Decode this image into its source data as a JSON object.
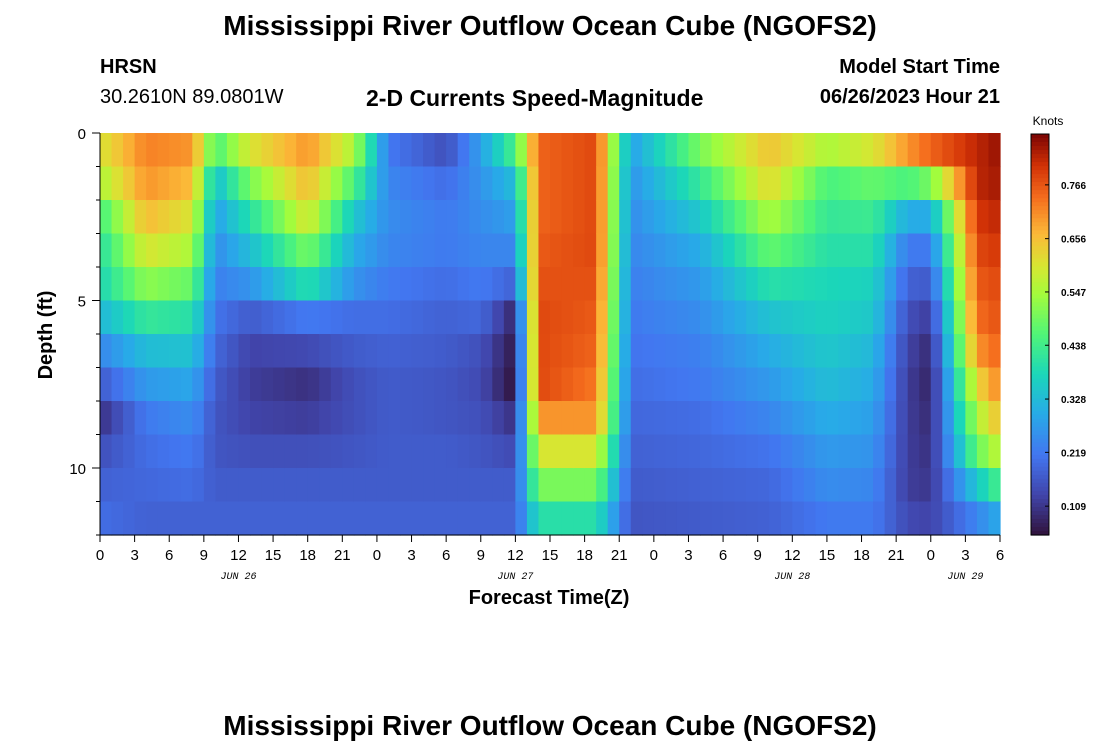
{
  "header": {
    "title": "Mississippi River Outflow Ocean Cube (NGOFS2)",
    "station": "HRSN",
    "coords": "30.2610N  89.0801W",
    "subtitle": "2-D Currents Speed-Magnitude",
    "model_start_label": "Model Start Time",
    "model_start_value": "06/26/2023 Hour 21"
  },
  "footer": {
    "title": "Mississippi River Outflow Ocean Cube (NGOFS2)"
  },
  "colors": {
    "palette": "turbo"
  },
  "chart_data": {
    "type": "heatmap",
    "title": "2-D Currents Speed-Magnitude",
    "xlabel": "Forecast Time(Z)",
    "ylabel": "Depth (ft)",
    "x_start_hour": 0,
    "x_end_hour": 78,
    "x_step_hours": 1,
    "x_tick_labels": [
      "0",
      "3",
      "6",
      "9",
      "12",
      "15",
      "18",
      "21",
      "0",
      "3",
      "6",
      "9",
      "12",
      "15",
      "18",
      "21",
      "0",
      "3",
      "6",
      "9",
      "12",
      "15",
      "18",
      "21",
      "0",
      "3",
      "6"
    ],
    "date_labels": [
      {
        "hour": 12,
        "label": "JUN 26"
      },
      {
        "hour": 36,
        "label": "JUN 27"
      },
      {
        "hour": 60,
        "label": "JUN 28"
      },
      {
        "hour": 75,
        "label": "JUN 29"
      }
    ],
    "ylim": [
      0,
      12
    ],
    "y_ticks": [
      0,
      5,
      10
    ],
    "depth_levels": 12,
    "colorbar": {
      "label": "Knots",
      "min": 0.05,
      "max": 0.87,
      "ticks": [
        0.109,
        0.219,
        0.328,
        0.438,
        0.547,
        0.656,
        0.766
      ],
      "tick_labels": [
        "0.109",
        "0.219",
        "0.328",
        "0.438",
        "0.547",
        "0.656",
        "0.766"
      ]
    },
    "key_times_hours": [
      0,
      4,
      8,
      10,
      13,
      18,
      22,
      25,
      30,
      33,
      36,
      38,
      43,
      46,
      52,
      58,
      63,
      67,
      70,
      72,
      76,
      78
    ],
    "profiles": [
      [
        0.6,
        0.55,
        0.44,
        0.4,
        0.38,
        0.32,
        0.24,
        0.17,
        0.1,
        0.15,
        0.18,
        0.2
      ],
      [
        0.72,
        0.7,
        0.66,
        0.6,
        0.52,
        0.42,
        0.33,
        0.27,
        0.22,
        0.2,
        0.19,
        0.18
      ],
      [
        0.7,
        0.66,
        0.6,
        0.55,
        0.48,
        0.4,
        0.34,
        0.29,
        0.25,
        0.22,
        0.2,
        0.18
      ],
      [
        0.45,
        0.33,
        0.28,
        0.25,
        0.23,
        0.21,
        0.19,
        0.17,
        0.16,
        0.16,
        0.17,
        0.18
      ],
      [
        0.6,
        0.5,
        0.4,
        0.33,
        0.26,
        0.17,
        0.13,
        0.12,
        0.13,
        0.15,
        0.17,
        0.18
      ],
      [
        0.7,
        0.66,
        0.6,
        0.5,
        0.4,
        0.22,
        0.14,
        0.1,
        0.12,
        0.15,
        0.17,
        0.18
      ],
      [
        0.55,
        0.45,
        0.35,
        0.3,
        0.26,
        0.2,
        0.17,
        0.15,
        0.15,
        0.16,
        0.17,
        0.18
      ],
      [
        0.22,
        0.24,
        0.25,
        0.24,
        0.22,
        0.2,
        0.18,
        0.17,
        0.17,
        0.17,
        0.17,
        0.18
      ],
      [
        0.15,
        0.2,
        0.22,
        0.22,
        0.2,
        0.18,
        0.17,
        0.16,
        0.16,
        0.17,
        0.17,
        0.18
      ],
      [
        0.28,
        0.26,
        0.25,
        0.24,
        0.22,
        0.19,
        0.15,
        0.14,
        0.15,
        0.16,
        0.17,
        0.18
      ],
      [
        0.45,
        0.33,
        0.28,
        0.24,
        0.18,
        0.08,
        0.06,
        0.05,
        0.1,
        0.14,
        0.17,
        0.18
      ],
      [
        0.75,
        0.75,
        0.75,
        0.76,
        0.77,
        0.78,
        0.78,
        0.78,
        0.7,
        0.6,
        0.5,
        0.4
      ],
      [
        0.78,
        0.78,
        0.78,
        0.78,
        0.77,
        0.76,
        0.75,
        0.73,
        0.7,
        0.6,
        0.5,
        0.4
      ],
      [
        0.28,
        0.26,
        0.25,
        0.24,
        0.23,
        0.22,
        0.21,
        0.2,
        0.19,
        0.18,
        0.17,
        0.16
      ],
      [
        0.5,
        0.42,
        0.35,
        0.3,
        0.27,
        0.25,
        0.23,
        0.22,
        0.2,
        0.19,
        0.18,
        0.17
      ],
      [
        0.65,
        0.62,
        0.55,
        0.48,
        0.4,
        0.34,
        0.3,
        0.27,
        0.24,
        0.21,
        0.19,
        0.18
      ],
      [
        0.55,
        0.45,
        0.42,
        0.4,
        0.38,
        0.37,
        0.35,
        0.33,
        0.3,
        0.27,
        0.25,
        0.22
      ],
      [
        0.6,
        0.48,
        0.43,
        0.4,
        0.37,
        0.35,
        0.32,
        0.3,
        0.28,
        0.26,
        0.24,
        0.22
      ],
      [
        0.7,
        0.45,
        0.3,
        0.22,
        0.18,
        0.15,
        0.13,
        0.12,
        0.12,
        0.12,
        0.12,
        0.14
      ],
      [
        0.75,
        0.5,
        0.3,
        0.22,
        0.17,
        0.12,
        0.09,
        0.08,
        0.09,
        0.1,
        0.11,
        0.13
      ],
      [
        0.82,
        0.82,
        0.8,
        0.78,
        0.76,
        0.74,
        0.7,
        0.62,
        0.55,
        0.48,
        0.35,
        0.24
      ],
      [
        0.85,
        0.84,
        0.82,
        0.8,
        0.78,
        0.77,
        0.75,
        0.72,
        0.66,
        0.58,
        0.45,
        0.3
      ]
    ]
  }
}
